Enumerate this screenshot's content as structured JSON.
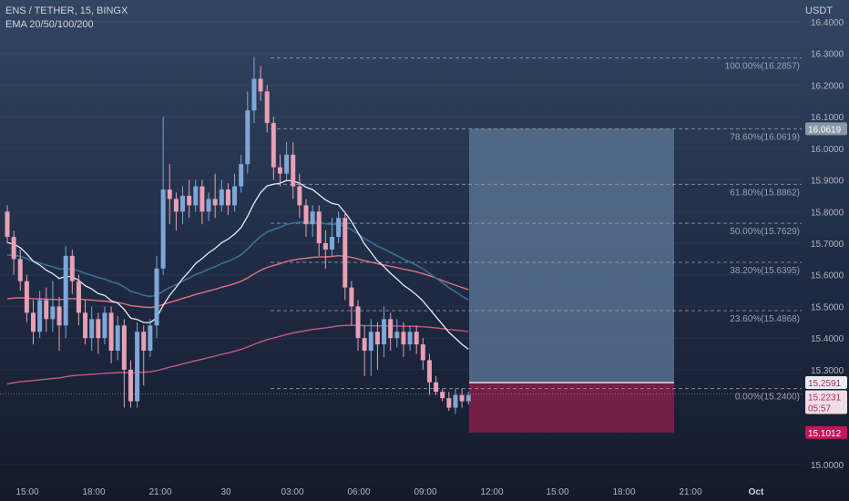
{
  "header": {
    "symbol_line": "ENS / TETHER, 15, BINGX",
    "indicator_line": "EMA 20/50/100/200"
  },
  "axis": {
    "unit": "USDT"
  },
  "colors": {
    "up": "#7ea7d8",
    "down": "#e8a0b4",
    "ema20": "#e6edf7",
    "ema50": "#3c6f94",
    "ema100": "#e0707e",
    "ema200": "#c45a80",
    "fib_line": "#9aa3b2",
    "entry_zone": "#58708f",
    "stop_zone": "#7e2048"
  },
  "price_tags": [
    {
      "name": "target-tag",
      "text": "16.0619",
      "bg": "#8b97a6"
    },
    {
      "name": "entry-tag",
      "text": "15.2591",
      "bg": "#e8edf2",
      "fg": "#ad2d62"
    },
    {
      "name": "current-tag",
      "text": "15.2231",
      "bg": "#f0dde5",
      "fg": "#ad2d62",
      "countdown": "05:57"
    },
    {
      "name": "stop-tag",
      "text": "15.1012",
      "bg": "#c2185b"
    }
  ],
  "chart_data": {
    "type": "candlestick",
    "yaxis_ticks": [
      "16.4000",
      "16.3000",
      "16.2000",
      "16.1000",
      "16.0000",
      "15.9000",
      "15.8000",
      "15.7000",
      "15.6000",
      "15.5000",
      "15.4000",
      "15.3000",
      "15.0000"
    ],
    "xaxis_ticks": [
      "15:00",
      "18:00",
      "21:00",
      "30",
      "03:00",
      "06:00",
      "09:00",
      "12:00",
      "15:00",
      "18:00",
      "21:00",
      "Oct"
    ],
    "ylim": [
      14.97,
      16.44
    ],
    "candle_count": 72,
    "candles": [
      [
        15.8,
        15.72,
        15.82,
        15.7
      ],
      [
        15.72,
        15.65,
        15.74,
        15.6
      ],
      [
        15.65,
        15.58,
        15.68,
        15.55
      ],
      [
        15.58,
        15.48,
        15.6,
        15.45
      ],
      [
        15.48,
        15.42,
        15.52,
        15.38
      ],
      [
        15.42,
        15.52,
        15.55,
        15.4
      ],
      [
        15.52,
        15.46,
        15.56,
        15.42
      ],
      [
        15.46,
        15.5,
        15.58,
        15.42
      ],
      [
        15.5,
        15.44,
        15.53,
        15.36
      ],
      [
        15.44,
        15.66,
        15.69,
        15.4
      ],
      [
        15.66,
        15.58,
        15.68,
        15.54
      ],
      [
        15.58,
        15.48,
        15.6,
        15.44
      ],
      [
        15.48,
        15.4,
        15.52,
        15.38
      ],
      [
        15.4,
        15.46,
        15.5,
        15.36
      ],
      [
        15.46,
        15.4,
        15.48,
        15.35
      ],
      [
        15.4,
        15.48,
        15.5,
        15.38
      ],
      [
        15.48,
        15.36,
        15.5,
        15.32
      ],
      [
        15.36,
        15.44,
        15.47,
        15.33
      ],
      [
        15.44,
        15.3,
        15.46,
        15.18
      ],
      [
        15.3,
        15.2,
        15.33,
        15.18
      ],
      [
        15.2,
        15.42,
        15.45,
        15.18
      ],
      [
        15.42,
        15.36,
        15.44,
        15.25
      ],
      [
        15.36,
        15.44,
        15.46,
        15.34
      ],
      [
        15.44,
        15.62,
        15.66,
        15.4
      ],
      [
        15.62,
        15.87,
        16.1,
        15.6
      ],
      [
        15.87,
        15.84,
        15.95,
        15.76
      ],
      [
        15.84,
        15.8,
        15.86,
        15.74
      ],
      [
        15.8,
        15.85,
        15.88,
        15.76
      ],
      [
        15.85,
        15.82,
        15.9,
        15.78
      ],
      [
        15.82,
        15.88,
        15.9,
        15.8
      ],
      [
        15.88,
        15.8,
        15.9,
        15.76
      ],
      [
        15.8,
        15.84,
        15.86,
        15.77
      ],
      [
        15.84,
        15.82,
        15.92,
        15.78
      ],
      [
        15.82,
        15.87,
        15.9,
        15.8
      ],
      [
        15.87,
        15.82,
        15.89,
        15.79
      ],
      [
        15.82,
        15.88,
        15.92,
        15.8
      ],
      [
        15.88,
        15.95,
        15.98,
        15.86
      ],
      [
        15.95,
        16.12,
        16.18,
        15.92
      ],
      [
        16.12,
        16.22,
        16.29,
        16.08
      ],
      [
        16.22,
        16.18,
        16.26,
        16.15
      ],
      [
        16.18,
        16.08,
        16.2,
        16.05
      ],
      [
        16.08,
        15.94,
        16.1,
        15.9
      ],
      [
        15.94,
        15.92,
        15.98,
        15.88
      ],
      [
        15.92,
        15.98,
        16.02,
        15.9
      ],
      [
        15.98,
        15.88,
        16.02,
        15.84
      ],
      [
        15.88,
        15.82,
        15.92,
        15.78
      ],
      [
        15.82,
        15.76,
        15.84,
        15.72
      ],
      [
        15.76,
        15.8,
        15.82,
        15.72
      ],
      [
        15.8,
        15.7,
        15.82,
        15.66
      ],
      [
        15.7,
        15.68,
        15.74,
        15.62
      ],
      [
        15.68,
        15.72,
        15.78,
        15.66
      ],
      [
        15.72,
        15.78,
        15.8,
        15.7
      ],
      [
        15.78,
        15.56,
        15.8,
        15.52
      ],
      [
        15.56,
        15.5,
        15.58,
        15.44
      ],
      [
        15.5,
        15.4,
        15.52,
        15.36
      ],
      [
        15.4,
        15.36,
        15.44,
        15.28
      ],
      [
        15.36,
        15.42,
        15.46,
        15.28
      ],
      [
        15.42,
        15.38,
        15.45,
        15.3
      ],
      [
        15.38,
        15.46,
        15.5,
        15.34
      ],
      [
        15.46,
        15.4,
        15.48,
        15.36
      ],
      [
        15.4,
        15.42,
        15.46,
        15.37
      ],
      [
        15.42,
        15.38,
        15.45,
        15.34
      ],
      [
        15.38,
        15.42,
        15.44,
        15.36
      ],
      [
        15.42,
        15.38,
        15.44,
        15.35
      ],
      [
        15.38,
        15.33,
        15.4,
        15.3
      ],
      [
        15.33,
        15.26,
        15.35,
        15.22
      ],
      [
        15.26,
        15.23,
        15.28,
        15.22
      ],
      [
        15.23,
        15.21,
        15.24,
        15.2
      ],
      [
        15.21,
        15.18,
        15.23,
        15.17
      ],
      [
        15.18,
        15.22,
        15.24,
        15.16
      ],
      [
        15.22,
        15.2,
        15.24,
        15.18
      ],
      [
        15.2,
        15.22,
        15.23,
        15.19
      ]
    ],
    "fibonacci": [
      {
        "ratio": "100.00%",
        "price": 16.2857,
        "label": "100.00%(16.2857)"
      },
      {
        "ratio": "78.60%",
        "price": 16.0619,
        "label": "78.60%(16.0619)"
      },
      {
        "ratio": "61.80%",
        "price": 15.8862,
        "label": "61.80%(15.8862)"
      },
      {
        "ratio": "50.00%",
        "price": 15.7629,
        "label": "50.00%(15.7629)"
      },
      {
        "ratio": "38.20%",
        "price": 15.6395,
        "label": "38.20%(15.6395)"
      },
      {
        "ratio": "23.60%",
        "price": 15.4868,
        "label": "23.60%(15.4868)"
      },
      {
        "ratio": "0.00%",
        "price": 15.24,
        "label": "0.00%(15.2400)"
      }
    ],
    "position": {
      "entry": 15.2591,
      "target": 16.0619,
      "stop": 15.1012
    },
    "current_price": 15.2231
  }
}
